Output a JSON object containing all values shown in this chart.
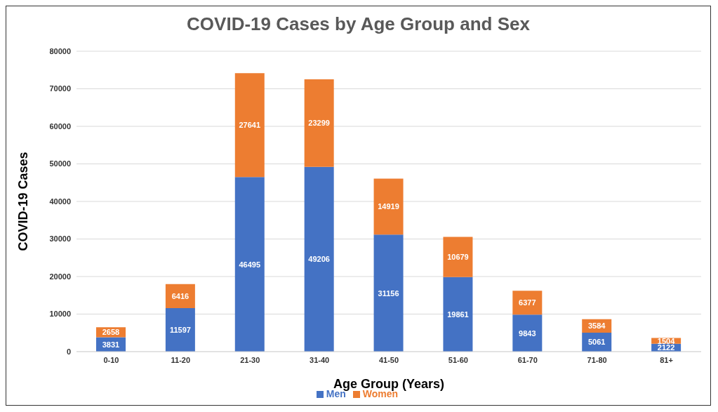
{
  "chart_data": {
    "type": "bar",
    "title": "COVID-19 Cases by Age Group and Sex",
    "xlabel": "Age Group (Years)",
    "ylabel": "COVID-19 Cases",
    "categories": [
      "0-10",
      "11-20",
      "21-30",
      "31-40",
      "41-50",
      "51-60",
      "61-70",
      "71-80",
      "81+"
    ],
    "series": [
      {
        "name": "Men",
        "color": "#4472c4",
        "values": [
          3831,
          11597,
          46495,
          49206,
          31156,
          19861,
          9843,
          5061,
          2122
        ]
      },
      {
        "name": "Women",
        "color": "#ed7d31",
        "values": [
          2658,
          6416,
          27641,
          23299,
          14919,
          10679,
          6377,
          3584,
          1504
        ]
      }
    ],
    "stacked": true,
    "data_labels": true,
    "ylim": [
      0,
      80000
    ],
    "yticks": [
      0,
      10000,
      20000,
      30000,
      40000,
      50000,
      60000,
      70000,
      80000
    ],
    "grid": "y",
    "legend": "bottom"
  }
}
